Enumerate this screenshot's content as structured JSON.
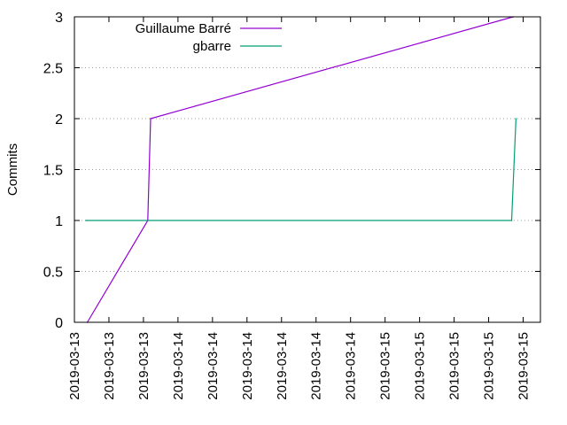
{
  "chart_data": {
    "type": "line",
    "title": "",
    "xlabel": "",
    "ylabel": "Commits",
    "ylim": [
      0,
      3
    ],
    "yticks": [
      0,
      0.5,
      1,
      1.5,
      2,
      2.5,
      3
    ],
    "ytick_labels": [
      "0",
      "0.5",
      "1",
      "1.5",
      "2",
      "2.5",
      "3"
    ],
    "xlim": [
      "2019-03-13 12:00",
      "2019-03-15 18:00"
    ],
    "xticks": [
      "2019-03-13 12:00",
      "2019-03-13 16:00",
      "2019-03-13 20:00",
      "2019-03-14 00:00",
      "2019-03-14 04:00",
      "2019-03-14 08:00",
      "2019-03-14 12:00",
      "2019-03-14 16:00",
      "2019-03-14 20:00",
      "2019-03-15 00:00",
      "2019-03-15 04:00",
      "2019-03-15 08:00",
      "2019-03-15 12:00",
      "2019-03-15 16:00"
    ],
    "xtick_labels": [
      "2019-03-13",
      "2019-03-13",
      "2019-03-13",
      "2019-03-14",
      "2019-03-14",
      "2019-03-14",
      "2019-03-14",
      "2019-03-14",
      "2019-03-14",
      "2019-03-15",
      "2019-03-15",
      "2019-03-15",
      "2019-03-15",
      "2019-03-15"
    ],
    "grid": "horizontal-dotted",
    "legend_position": "top-left",
    "series": [
      {
        "name": "Guillaume Barré",
        "color": "#9400d3",
        "points": [
          {
            "x": "2019-03-13 13:30",
            "y": 0
          },
          {
            "x": "2019-03-13 20:30",
            "y": 1
          },
          {
            "x": "2019-03-13 20:50",
            "y": 2
          },
          {
            "x": "2019-03-15 14:50",
            "y": 3
          }
        ]
      },
      {
        "name": "gbarre",
        "color": "#009e73",
        "points": [
          {
            "x": "2019-03-13 13:20",
            "y": 1
          },
          {
            "x": "2019-03-15 14:40",
            "y": 1
          },
          {
            "x": "2019-03-15 15:10",
            "y": 2
          }
        ]
      }
    ]
  }
}
